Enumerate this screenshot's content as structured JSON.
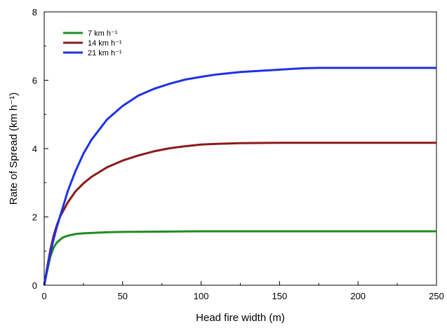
{
  "chart_data": {
    "type": "line",
    "xlabel": "Head fire width (m)",
    "ylabel": "Rate of Spread (km h⁻¹)",
    "xlim": [
      0,
      250
    ],
    "ylim": [
      0,
      8
    ],
    "xticks": [
      0,
      50,
      100,
      150,
      200,
      250
    ],
    "yticks": [
      0,
      2,
      4,
      6,
      8
    ],
    "grid": false,
    "legend_position": "top-left",
    "series": [
      {
        "name": "7 km h⁻¹",
        "color": "#228B22",
        "x": [
          0,
          2,
          4,
          6,
          8,
          10,
          12,
          15,
          18,
          20,
          25,
          30,
          40,
          50,
          75,
          100,
          150,
          200,
          250
        ],
        "y": [
          0,
          0.45,
          0.85,
          1.1,
          1.25,
          1.33,
          1.4,
          1.45,
          1.48,
          1.5,
          1.52,
          1.53,
          1.55,
          1.56,
          1.57,
          1.58,
          1.58,
          1.58,
          1.58
        ]
      },
      {
        "name": "14 km h⁻¹",
        "color": "#8B1A1A",
        "x": [
          0,
          2,
          4,
          6,
          8,
          10,
          15,
          20,
          25,
          30,
          40,
          50,
          60,
          70,
          80,
          90,
          100,
          110,
          125,
          150,
          175,
          200,
          225,
          250
        ],
        "y": [
          0,
          0.55,
          1.05,
          1.45,
          1.75,
          2.0,
          2.42,
          2.75,
          2.98,
          3.17,
          3.45,
          3.65,
          3.8,
          3.92,
          4.01,
          4.07,
          4.12,
          4.14,
          4.16,
          4.17,
          4.17,
          4.17,
          4.17,
          4.17
        ]
      },
      {
        "name": "21 km h⁻¹",
        "color": "#1E32E6",
        "x": [
          0,
          2,
          4,
          6,
          8,
          10,
          15,
          20,
          25,
          30,
          40,
          50,
          60,
          70,
          80,
          90,
          100,
          110,
          125,
          150,
          165,
          175,
          200,
          225,
          250
        ],
        "y": [
          0,
          0.5,
          0.95,
          1.35,
          1.7,
          2.0,
          2.75,
          3.35,
          3.85,
          4.25,
          4.85,
          5.25,
          5.55,
          5.75,
          5.9,
          6.02,
          6.1,
          6.17,
          6.24,
          6.31,
          6.35,
          6.36,
          6.36,
          6.36,
          6.36
        ]
      }
    ]
  }
}
